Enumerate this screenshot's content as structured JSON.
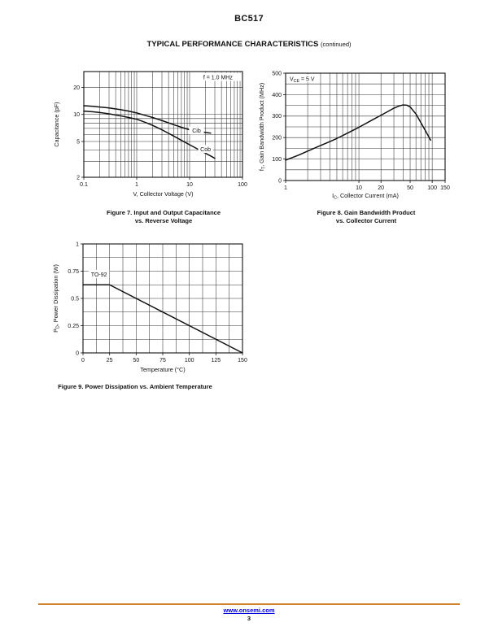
{
  "page": {
    "title": "BC517",
    "section_heading": "TYPICAL PERFORMANCE CHARACTERISTICS",
    "section_heading_note": "(continued)"
  },
  "footer": {
    "link": "www.onsemi.com",
    "page_number": "3",
    "rule_color": "#D0812C",
    "link_color": "#0000DC"
  },
  "chart_data": [
    {
      "id": "fig7",
      "type": "line",
      "caption": "Figure 7. Input and Output Capacitance",
      "caption_line2": "vs. Reverse Voltage",
      "xlabel_parts": [
        {
          "t": "V, Collector Voltage (V)"
        }
      ],
      "ylabel_parts": [
        {
          "t": "Capacitance (pF)"
        }
      ],
      "x_scale": "log",
      "y_scale": "log",
      "xlim": [
        0.1,
        100
      ],
      "ylim": [
        2,
        30
      ],
      "x_ticks": [
        {
          "v": 0.1,
          "label": "0.1"
        },
        {
          "v": 1,
          "label": "1"
        },
        {
          "v": 10,
          "label": "10"
        },
        {
          "v": 100,
          "label": "100"
        }
      ],
      "y_ticks": [
        {
          "v": 2,
          "label": "2"
        },
        {
          "v": 5,
          "label": "5"
        },
        {
          "v": 10,
          "label": "10"
        },
        {
          "v": 20,
          "label": "20"
        }
      ],
      "grid": {
        "x": "log",
        "y": "log"
      },
      "annotation": {
        "parts": [
          {
            "t": "f = 1.0 MHz"
          }
        ],
        "corner": "top-right"
      },
      "series": [
        {
          "name": "Cib",
          "label": "Cib",
          "label_at": [
            13.5,
            6.6
          ],
          "points": [
            [
              0.1,
              12.5
            ],
            [
              0.15,
              12.3
            ],
            [
              0.2,
              12.1
            ],
            [
              0.3,
              11.8
            ],
            [
              0.5,
              11.3
            ],
            [
              0.7,
              10.9
            ],
            [
              1,
              10.4
            ],
            [
              1.5,
              9.7
            ],
            [
              2,
              9.25
            ],
            [
              3,
              8.55
            ],
            [
              5,
              7.7
            ],
            [
              7,
              7.2
            ],
            [
              10,
              6.75
            ],
            [
              14,
              6.5
            ],
            [
              20,
              6.3
            ],
            [
              25,
              6.2
            ]
          ]
        },
        {
          "name": "Cob",
          "label": "Cob",
          "label_at": [
            20,
            4.1
          ],
          "points": [
            [
              0.1,
              10.9
            ],
            [
              0.15,
              10.7
            ],
            [
              0.2,
              10.5
            ],
            [
              0.3,
              10.15
            ],
            [
              0.5,
              9.65
            ],
            [
              0.7,
              9.25
            ],
            [
              1,
              8.85
            ],
            [
              1.5,
              8.1
            ],
            [
              2,
              7.55
            ],
            [
              3,
              6.75
            ],
            [
              5,
              5.75
            ],
            [
              7,
              5.15
            ],
            [
              10,
              4.6
            ],
            [
              15,
              4.05
            ],
            [
              20,
              3.7
            ],
            [
              25,
              3.45
            ],
            [
              30,
              3.25
            ]
          ]
        }
      ]
    },
    {
      "id": "fig8",
      "type": "line",
      "caption": "Figure 8. Gain Bandwidth Product",
      "caption_line2": "vs. Collector Current",
      "xlabel_parts": [
        {
          "t": "I"
        },
        {
          "t": "C",
          "sub": true
        },
        {
          "t": ", Collector Current (mA)"
        }
      ],
      "ylabel_parts": [
        {
          "t": "f"
        },
        {
          "t": "T",
          "sub": true
        },
        {
          "t": ", Gain Bandwidth Product (MHz)"
        }
      ],
      "x_scale": "log",
      "y_scale": "linear",
      "xlim": [
        1,
        150
      ],
      "ylim": [
        0,
        500
      ],
      "x_ticks": [
        {
          "v": 1,
          "label": "1"
        },
        {
          "v": 10,
          "label": "10"
        },
        {
          "v": 20,
          "label": "20"
        },
        {
          "v": 50,
          "label": "50"
        },
        {
          "v": 100,
          "label": "100"
        },
        {
          "v": 150,
          "label": "150"
        }
      ],
      "y_ticks": [
        {
          "v": 0,
          "label": "0"
        },
        {
          "v": 100,
          "label": "100"
        },
        {
          "v": 200,
          "label": "200"
        },
        {
          "v": 300,
          "label": "300"
        },
        {
          "v": 400,
          "label": "400"
        },
        {
          "v": 500,
          "label": "500"
        }
      ],
      "grid": {
        "x": "log",
        "y": "linear",
        "y_step": 50
      },
      "annotation": {
        "parts": [
          {
            "t": "V"
          },
          {
            "t": "CE",
            "sub": true
          },
          {
            "t": " = 5 V"
          }
        ],
        "corner": "top-left"
      },
      "series": [
        {
          "name": "fT",
          "points": [
            [
              1,
              95
            ],
            [
              1.5,
              118
            ],
            [
              2,
              137
            ],
            [
              3,
              163
            ],
            [
              4,
              181
            ],
            [
              5,
              196
            ],
            [
              7,
              221
            ],
            [
              10,
              248
            ],
            [
              15,
              281
            ],
            [
              20,
              304
            ],
            [
              25,
              322
            ],
            [
              30,
              337
            ],
            [
              35,
              347
            ],
            [
              40,
              352
            ],
            [
              45,
              351
            ],
            [
              50,
              343
            ],
            [
              60,
              310
            ],
            [
              70,
              270
            ],
            [
              80,
              235
            ],
            [
              90,
              203
            ],
            [
              95,
              188
            ]
          ]
        }
      ]
    },
    {
      "id": "fig9",
      "type": "line",
      "caption": "Figure 9. Power Dissipation vs. Ambient Temperature",
      "xlabel_parts": [
        {
          "t": "Temperature (°C)"
        }
      ],
      "ylabel_parts": [
        {
          "t": "P"
        },
        {
          "t": "D",
          "sub": true
        },
        {
          "t": ", Power Dissipation (W)"
        }
      ],
      "x_scale": "linear",
      "y_scale": "linear",
      "xlim": [
        0,
        150
      ],
      "ylim": [
        0,
        1
      ],
      "x_ticks": [
        {
          "v": 0,
          "label": "0"
        },
        {
          "v": 25,
          "label": "25"
        },
        {
          "v": 50,
          "label": "50"
        },
        {
          "v": 75,
          "label": "75"
        },
        {
          "v": 100,
          "label": "100"
        },
        {
          "v": 125,
          "label": "125"
        },
        {
          "v": 150,
          "label": "150"
        }
      ],
      "y_ticks": [
        {
          "v": 0,
          "label": "0"
        },
        {
          "v": 0.25,
          "label": "0.25"
        },
        {
          "v": 0.5,
          "label": "0.5"
        },
        {
          "v": 0.75,
          "label": "0.75"
        },
        {
          "v": 1,
          "label": "1"
        }
      ],
      "grid": {
        "x": "linear",
        "x_step": 12.5,
        "y": "linear",
        "y_step": 0.125
      },
      "annotation": {
        "parts": [
          {
            "t": "TO-92"
          }
        ],
        "corner": "custom",
        "at": [
          15,
          0.72
        ]
      },
      "series": [
        {
          "name": "PD",
          "points": [
            [
              0,
              0.625
            ],
            [
              25,
              0.625
            ],
            [
              150,
              0
            ]
          ]
        }
      ]
    }
  ]
}
